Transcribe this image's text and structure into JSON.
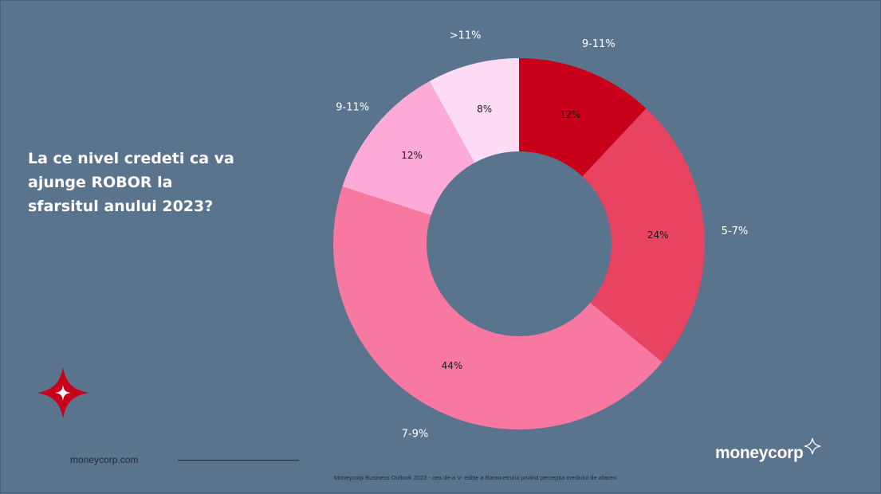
{
  "slide": {
    "question": "La ce nivel credeti ca va ajunge ROBOR la sfarsitul anului 2023?",
    "site_url": "moneycorp.com",
    "footnote": "Moneycorp Business Outlook 2023 - cea de-a V- ediție a Barometrului privind percepția mediului de afaceri",
    "brand": "moneycorp",
    "background_color": "#5a748e",
    "star_logo_icon": "red-four-point-star"
  },
  "chart_data": {
    "type": "pie",
    "donut": true,
    "title": "",
    "slices": [
      {
        "category": "9-11%",
        "value": 12,
        "label": "12%",
        "color": "#c8001a"
      },
      {
        "category": "5-7%",
        "value": 24,
        "label": "24%",
        "color": "#e84360"
      },
      {
        "category": "7-9%",
        "value": 44,
        "label": "44%",
        "color": "#f878a2"
      },
      {
        "category": "9-11%",
        "value": 12,
        "label": "12%",
        "color": "#fdaad6"
      },
      {
        "category": ">11%",
        "value": 8,
        "label": "8%",
        "color": "#ffdcf6"
      }
    ],
    "legend": "none"
  }
}
